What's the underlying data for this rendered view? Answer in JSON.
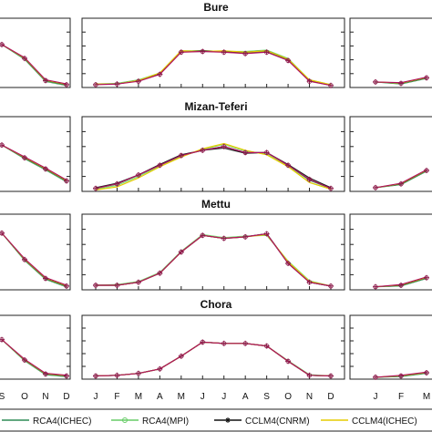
{
  "chart_data": [
    {
      "type": "line",
      "title": "Bure",
      "x": [
        "J",
        "F",
        "M",
        "A",
        "M",
        "J",
        "J",
        "A",
        "S",
        "O",
        "N",
        "D"
      ],
      "ylim": [
        0,
        1
      ],
      "series": [
        {
          "name": "RCA4(ICHEC)",
          "values": [
            0.05,
            0.05,
            0.1,
            0.2,
            0.52,
            0.52,
            0.52,
            0.5,
            0.52,
            0.4,
            0.1,
            0.03
          ]
        },
        {
          "name": "RCA4(MPI)",
          "values": [
            0.05,
            0.06,
            0.11,
            0.21,
            0.53,
            0.53,
            0.52,
            0.52,
            0.54,
            0.42,
            0.11,
            0.04
          ]
        },
        {
          "name": "CCLM4(CNRM)",
          "values": [
            0.05,
            0.05,
            0.1,
            0.2,
            0.52,
            0.53,
            0.52,
            0.51,
            0.53,
            0.41,
            0.1,
            0.03
          ]
        },
        {
          "name": "CCLM4(ICHEC)",
          "values": [
            0.05,
            0.05,
            0.1,
            0.21,
            0.53,
            0.52,
            0.53,
            0.51,
            0.53,
            0.41,
            0.11,
            0.04
          ]
        },
        {
          "name": "",
          "values": [
            0.04,
            0.05,
            0.09,
            0.19,
            0.51,
            0.52,
            0.51,
            0.49,
            0.51,
            0.39,
            0.09,
            0.03
          ]
        }
      ]
    },
    {
      "type": "line",
      "title": "Mizan-Teferi",
      "x": [
        "J",
        "F",
        "M",
        "A",
        "M",
        "J",
        "J",
        "A",
        "S",
        "O",
        "N",
        "D"
      ],
      "ylim": [
        0,
        1
      ],
      "series": [
        {
          "name": "RCA4(ICHEC)",
          "values": [
            0.04,
            0.1,
            0.22,
            0.35,
            0.48,
            0.55,
            0.6,
            0.52,
            0.52,
            0.35,
            0.15,
            0.04
          ]
        },
        {
          "name": "RCA4(MPI)",
          "values": [
            0.03,
            0.08,
            0.2,
            0.34,
            0.47,
            0.56,
            0.63,
            0.54,
            0.5,
            0.34,
            0.12,
            0.03
          ]
        },
        {
          "name": "CCLM4(CNRM)",
          "values": [
            0.05,
            0.11,
            0.22,
            0.36,
            0.49,
            0.55,
            0.58,
            0.51,
            0.52,
            0.36,
            0.18,
            0.05
          ]
        },
        {
          "name": "CCLM4(ICHEC)",
          "values": [
            0.02,
            0.06,
            0.18,
            0.33,
            0.46,
            0.57,
            0.64,
            0.55,
            0.49,
            0.33,
            0.12,
            0.03
          ]
        },
        {
          "name": "",
          "values": [
            0.04,
            0.1,
            0.22,
            0.35,
            0.48,
            0.55,
            0.6,
            0.52,
            0.52,
            0.35,
            0.16,
            0.04
          ]
        }
      ]
    },
    {
      "type": "line",
      "title": "Mettu",
      "x": [
        "J",
        "F",
        "M",
        "A",
        "M",
        "J",
        "J",
        "A",
        "S",
        "O",
        "N",
        "D"
      ],
      "ylim": [
        0,
        1
      ],
      "series": [
        {
          "name": "RCA4(ICHEC)",
          "values": [
            0.06,
            0.06,
            0.1,
            0.22,
            0.5,
            0.72,
            0.68,
            0.7,
            0.74,
            0.35,
            0.1,
            0.05
          ]
        },
        {
          "name": "RCA4(MPI)",
          "values": [
            0.06,
            0.07,
            0.11,
            0.23,
            0.51,
            0.73,
            0.69,
            0.71,
            0.72,
            0.38,
            0.12,
            0.05
          ]
        },
        {
          "name": "CCLM4(CNRM)",
          "values": [
            0.06,
            0.06,
            0.1,
            0.22,
            0.5,
            0.72,
            0.68,
            0.7,
            0.74,
            0.36,
            0.1,
            0.05
          ]
        },
        {
          "name": "CCLM4(ICHEC)",
          "values": [
            0.06,
            0.06,
            0.1,
            0.22,
            0.5,
            0.72,
            0.68,
            0.7,
            0.73,
            0.37,
            0.11,
            0.05
          ]
        },
        {
          "name": "",
          "values": [
            0.06,
            0.06,
            0.1,
            0.22,
            0.5,
            0.72,
            0.68,
            0.7,
            0.74,
            0.35,
            0.1,
            0.05
          ]
        }
      ]
    },
    {
      "type": "line",
      "title": "Chora",
      "x": [
        "J",
        "F",
        "M",
        "A",
        "M",
        "J",
        "J",
        "A",
        "S",
        "O",
        "N",
        "D"
      ],
      "ylim": [
        0,
        1
      ],
      "series": [
        {
          "name": "RCA4(ICHEC)",
          "values": [
            0.05,
            0.06,
            0.09,
            0.16,
            0.36,
            0.58,
            0.56,
            0.56,
            0.52,
            0.28,
            0.06,
            0.05
          ]
        },
        {
          "name": "RCA4(MPI)",
          "values": [
            0.05,
            0.06,
            0.09,
            0.16,
            0.36,
            0.58,
            0.56,
            0.56,
            0.52,
            0.29,
            0.07,
            0.05
          ]
        },
        {
          "name": "CCLM4(CNRM)",
          "values": [
            0.05,
            0.06,
            0.09,
            0.16,
            0.36,
            0.58,
            0.56,
            0.56,
            0.52,
            0.28,
            0.06,
            0.05
          ]
        },
        {
          "name": "CCLM4(ICHEC)",
          "values": [
            0.05,
            0.06,
            0.09,
            0.16,
            0.36,
            0.58,
            0.56,
            0.56,
            0.52,
            0.28,
            0.06,
            0.05
          ]
        },
        {
          "name": "",
          "values": [
            0.05,
            0.06,
            0.09,
            0.16,
            0.36,
            0.58,
            0.56,
            0.56,
            0.52,
            0.28,
            0.06,
            0.05
          ]
        }
      ]
    }
  ],
  "left_column": {
    "x_ticks": [
      "S",
      "O",
      "N",
      "D"
    ],
    "bure": [
      0.62,
      0.42,
      0.1,
      0.04
    ],
    "mizan": [
      0.62,
      0.45,
      0.3,
      0.14
    ],
    "mettu": [
      0.75,
      0.4,
      0.15,
      0.05
    ],
    "chora": [
      0.62,
      0.3,
      0.08,
      0.05
    ]
  },
  "right_column": {
    "x_ticks": [
      "J",
      "F",
      "M"
    ],
    "bure": [
      0.08,
      0.06,
      0.14
    ],
    "mizan": [
      0.05,
      0.1,
      0.28
    ],
    "mettu": [
      0.04,
      0.06,
      0.16
    ],
    "chora": [
      0.03,
      0.05,
      0.1
    ]
  },
  "legend": [
    {
      "label": "RCA4(ICHEC)",
      "color": "#2e8b57",
      "marker": "line"
    },
    {
      "label": "RCA4(MPI)",
      "color": "#66cc66",
      "marker": "circle"
    },
    {
      "label": "CCLM4(CNRM)",
      "color": "#111111",
      "marker": "star"
    },
    {
      "label": "CCLM4(ICHEC)",
      "color": "#e6cc00",
      "marker": "line"
    }
  ],
  "colors": {
    "series": [
      "#2e8b57",
      "#7ddc7d",
      "#222222",
      "#e6cc00",
      "#b01060"
    ],
    "marker": "#8b1a4a"
  }
}
